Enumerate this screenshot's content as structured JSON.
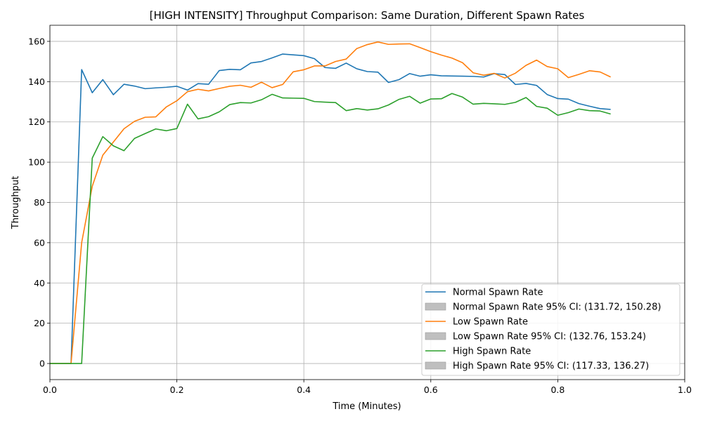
{
  "chart_data": {
    "type": "line",
    "title": "[HIGH INTENSITY] Throughput Comparison: Same Duration, Different Spawn Rates",
    "xlabel": "Time (Minutes)",
    "ylabel": "Throughput",
    "xlim": [
      0.0,
      1.0
    ],
    "ylim": [
      -8,
      168
    ],
    "xticks": [
      "0.0",
      "0.2",
      "0.4",
      "0.6",
      "0.8",
      "1.0"
    ],
    "yticks": [
      "0",
      "20",
      "40",
      "60",
      "80",
      "100",
      "120",
      "140",
      "160"
    ],
    "grid": true,
    "legend_position": "lower-right",
    "x": [
      0.0,
      0.0167,
      0.0333,
      0.05,
      0.0667,
      0.0833,
      0.1,
      0.1167,
      0.1333,
      0.15,
      0.1667,
      0.1833,
      0.2,
      0.2167,
      0.2333,
      0.25,
      0.2667,
      0.2833,
      0.3,
      0.3167,
      0.3333,
      0.35,
      0.3667,
      0.3833,
      0.4,
      0.4167,
      0.4333,
      0.45,
      0.4667,
      0.4833,
      0.5,
      0.5167,
      0.5333,
      0.55,
      0.5667,
      0.5833,
      0.6,
      0.6167,
      0.6333,
      0.65,
      0.6667,
      0.6833,
      0.7,
      0.7167,
      0.7333,
      0.75,
      0.7667,
      0.7833,
      0.8,
      0.8167,
      0.8333,
      0.85,
      0.8667,
      0.8833
    ],
    "series": [
      {
        "name": "Normal Spawn Rate",
        "color": "#1f77b4",
        "values": [
          0,
          0,
          0,
          146,
          134.5,
          141,
          133.5,
          138.7,
          137.8,
          136.5,
          136.9,
          137.2,
          137.7,
          135.8,
          139,
          138.7,
          145.5,
          146.1,
          145.9,
          149.3,
          150,
          151.8,
          153.7,
          153.3,
          152.9,
          151.4,
          147,
          146.6,
          149.2,
          146.4,
          145,
          144.7,
          139.6,
          141,
          144,
          142.7,
          143.4,
          142.9,
          142.8,
          142.7,
          142.6,
          142.3,
          144,
          143.5,
          138.6,
          139.1,
          138.1,
          133.6,
          131.6,
          131.3,
          129.1,
          127.8,
          126.6,
          126.2
        ]
      },
      {
        "name": "Low Spawn Rate",
        "color": "#ff7f0e",
        "values": [
          0,
          0,
          0,
          60,
          88,
          103.5,
          110,
          116.6,
          120.3,
          122.3,
          122.5,
          127.4,
          130.5,
          135,
          136.2,
          135.4,
          136.6,
          137.7,
          138.2,
          137.2,
          139.7,
          137,
          138.6,
          144.9,
          145.9,
          147.8,
          147.8,
          150,
          151.2,
          156.4,
          158.4,
          159.7,
          158.5,
          158.7,
          158.8,
          156.9,
          154.9,
          153.2,
          151.7,
          149.4,
          144.4,
          143.2,
          144.1,
          141.8,
          144.2,
          148.1,
          150.7,
          147.5,
          146.4,
          142,
          143.6,
          145.4,
          144.8,
          142.3
        ]
      },
      {
        "name": "High Spawn Rate",
        "color": "#2ca02c",
        "values": [
          0,
          0,
          0,
          0,
          102,
          112.7,
          108.1,
          105.7,
          111.8,
          114.2,
          116.5,
          115.6,
          116.7,
          128.8,
          121.5,
          122.6,
          125,
          128.6,
          129.6,
          129.4,
          131,
          133.7,
          131.9,
          131.8,
          131.7,
          130.1,
          129.8,
          129.6,
          125.6,
          126.6,
          125.9,
          126.5,
          128.4,
          131.2,
          132.7,
          129.3,
          131.4,
          131.5,
          134.1,
          132.3,
          128.8,
          129.2,
          129,
          128.7,
          129.7,
          132.1,
          127.7,
          126.8,
          123.3,
          124.6,
          126.4,
          125.6,
          125.4,
          123.9
        ]
      }
    ],
    "legend": [
      {
        "label": "Normal Spawn Rate",
        "kind": "line",
        "color": "#1f77b4"
      },
      {
        "label": "Normal Spawn Rate 95% CI: (131.72, 150.28)",
        "kind": "patch",
        "color": "#bfbfbf"
      },
      {
        "label": "Low Spawn Rate",
        "kind": "line",
        "color": "#ff7f0e"
      },
      {
        "label": "Low Spawn Rate 95% CI: (132.76, 153.24)",
        "kind": "patch",
        "color": "#bfbfbf"
      },
      {
        "label": "High Spawn Rate",
        "kind": "line",
        "color": "#2ca02c"
      },
      {
        "label": "High Spawn Rate 95% CI: (117.33, 136.27)",
        "kind": "patch",
        "color": "#bfbfbf"
      }
    ]
  }
}
